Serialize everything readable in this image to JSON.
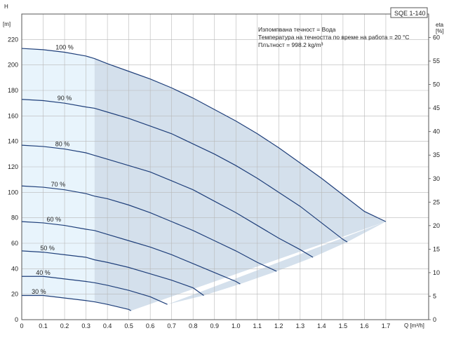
{
  "chart_data": {
    "type": "line",
    "model": "SQE 1-140",
    "info_lines": [
      "Изпомпвана течност = Вода",
      "Температура на течността по време на работа = 20 °C",
      "Плътност = 998.2 kg/m³"
    ],
    "x_axis": {
      "label": "Q [m³/h]",
      "range": [
        0,
        1.9
      ],
      "ticks": [
        "0",
        "0.1",
        "0.2",
        "0.3",
        "0.4",
        "0.5",
        "0.6",
        "0.7",
        "0.8",
        "0.9",
        "1.0",
        "1.1",
        "1.2",
        "1.3",
        "1.4",
        "1.5",
        "1.6",
        "1.7"
      ]
    },
    "y_axis_left": {
      "label_top": "H",
      "label_unit": "[m]",
      "range": [
        0,
        240
      ],
      "ticks": [
        "0",
        "20",
        "40",
        "60",
        "80",
        "100",
        "120",
        "140",
        "160",
        "180",
        "200",
        "220"
      ]
    },
    "y_axis_right": {
      "label_top": "eta",
      "label_unit": "[%]",
      "range": [
        0,
        65
      ],
      "ticks": [
        "0",
        "5",
        "10",
        "15",
        "20",
        "25",
        "30",
        "35",
        "40",
        "45",
        "50",
        "55",
        "60"
      ]
    },
    "grid": true,
    "colors": {
      "curve": "#1f3f7a",
      "operating_area": "#d4e0ec",
      "low_flow_area": "#e8f4fc",
      "grid": "#b8b8b8",
      "axis": "#555555"
    },
    "low_flow_limit_q": 0.34,
    "series": [
      {
        "name": "100 %",
        "x": [
          0,
          0.1,
          0.2,
          0.3,
          0.34,
          0.4,
          0.5,
          0.6,
          0.7,
          0.8,
          0.9,
          1.0,
          1.1,
          1.2,
          1.3,
          1.4,
          1.5,
          1.6,
          1.7
        ],
        "y": [
          213,
          212,
          210,
          207,
          205,
          201,
          195,
          189,
          182,
          174,
          165,
          156,
          146,
          135,
          123,
          111,
          98,
          85,
          77
        ]
      },
      {
        "name": "90 %",
        "x": [
          0,
          0.1,
          0.2,
          0.3,
          0.34,
          0.4,
          0.5,
          0.6,
          0.7,
          0.8,
          0.9,
          1.0,
          1.1,
          1.2,
          1.3,
          1.4,
          1.5,
          1.52
        ],
        "y": [
          173,
          172,
          170,
          167,
          166,
          163,
          158,
          152,
          146,
          138,
          130,
          121,
          111,
          100,
          89,
          76,
          63,
          61
        ]
      },
      {
        "name": "80 %",
        "x": [
          0,
          0.1,
          0.2,
          0.3,
          0.34,
          0.4,
          0.5,
          0.6,
          0.7,
          0.8,
          0.9,
          1.0,
          1.1,
          1.2,
          1.3,
          1.36
        ],
        "y": [
          137,
          136,
          134,
          131,
          129,
          126,
          121,
          116,
          109,
          102,
          93,
          84,
          74,
          64,
          55,
          49
        ]
      },
      {
        "name": "70 %",
        "x": [
          0,
          0.1,
          0.2,
          0.3,
          0.34,
          0.4,
          0.5,
          0.6,
          0.7,
          0.8,
          0.9,
          1.0,
          1.1,
          1.19
        ],
        "y": [
          105,
          104,
          102,
          99,
          97,
          95,
          90,
          84,
          77,
          70,
          62,
          54,
          45,
          38
        ]
      },
      {
        "name": "60 %",
        "x": [
          0,
          0.1,
          0.2,
          0.3,
          0.34,
          0.4,
          0.5,
          0.6,
          0.7,
          0.8,
          0.9,
          1.0,
          1.02
        ],
        "y": [
          77,
          76,
          74,
          71,
          70,
          67,
          62,
          57,
          51,
          44,
          37,
          30,
          28
        ]
      },
      {
        "name": "50 %",
        "x": [
          0,
          0.1,
          0.2,
          0.3,
          0.34,
          0.4,
          0.5,
          0.6,
          0.7,
          0.8,
          0.85
        ],
        "y": [
          54,
          53,
          51,
          49,
          47,
          45,
          41,
          36,
          31,
          25,
          19
        ]
      },
      {
        "name": "40 %",
        "x": [
          0,
          0.1,
          0.2,
          0.3,
          0.34,
          0.4,
          0.5,
          0.6,
          0.68
        ],
        "y": [
          34,
          34,
          32,
          30,
          29,
          27,
          23,
          18,
          12
        ]
      },
      {
        "name": "30 %",
        "x": [
          0,
          0.1,
          0.2,
          0.3,
          0.34,
          0.4,
          0.5,
          0.51
        ],
        "y": [
          19,
          19,
          17,
          15,
          14,
          12,
          8,
          7
        ]
      }
    ]
  }
}
